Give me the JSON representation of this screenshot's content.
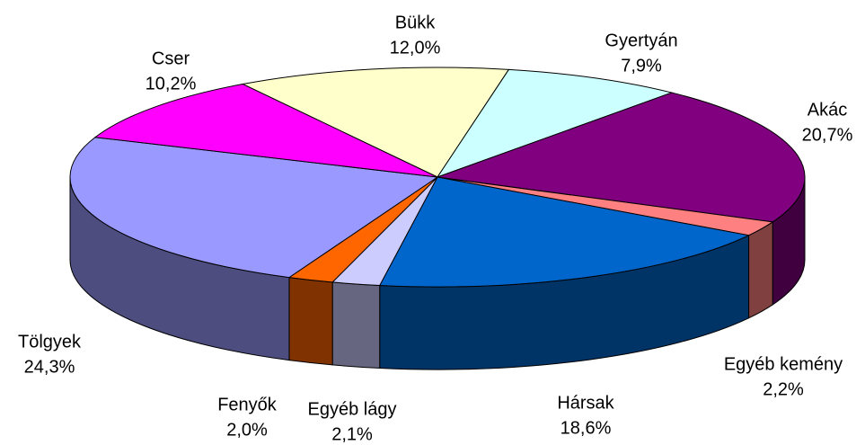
{
  "chart_data": {
    "type": "pie",
    "categories": [
      "Bükk",
      "Gyertyán",
      "Akác",
      "Egyéb kemény",
      "Hársak",
      "Egyéb lágy",
      "Fenyők",
      "Tölgyek",
      "Cser"
    ],
    "values": [
      12.0,
      7.9,
      20.7,
      2.2,
      18.6,
      2.1,
      2.0,
      24.3,
      10.2
    ],
    "value_labels": [
      "12,0%",
      "7,9%",
      "20,7%",
      "2,2%",
      "18,6%",
      "2,1%",
      "2,0%",
      "24,3%",
      "10,2%"
    ],
    "colors": [
      "#ffffcc",
      "#ccffff",
      "#800080",
      "#ff8080",
      "#0066cc",
      "#ccccff",
      "#ff6600",
      "#9999ff",
      "#ff00ff"
    ]
  }
}
